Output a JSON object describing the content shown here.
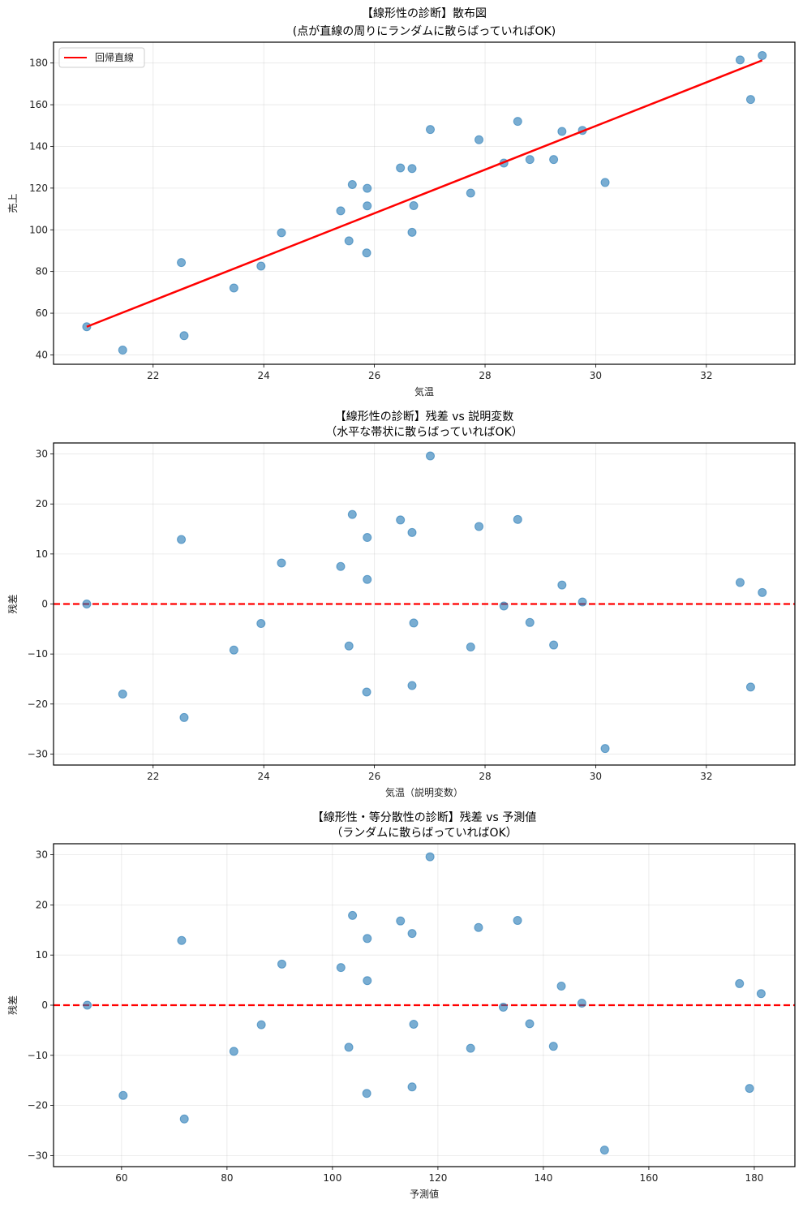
{
  "chart_data": [
    {
      "type": "scatter",
      "title": "【線形性の診断】散布図",
      "subtitle": "(点が直線の周りにランダムに散らばっていればOK)",
      "xlabel": "気温",
      "ylabel": "売上",
      "xlim": [
        20.2,
        33.6
      ],
      "ylim": [
        35.5,
        190
      ],
      "xticks": [
        22,
        24,
        26,
        28,
        30,
        32
      ],
      "yticks": [
        40,
        60,
        80,
        100,
        120,
        140,
        160,
        180
      ],
      "grid": true,
      "legend": {
        "position": "top-left",
        "entries": [
          "回帰直線"
        ]
      },
      "series": [
        {
          "name": "data",
          "kind": "scatter",
          "color": "#1f77b4",
          "x": [
            20.8,
            21.45,
            22.51,
            22.56,
            23.46,
            23.95,
            24.32,
            25.39,
            25.54,
            25.6,
            25.87,
            25.87,
            25.86,
            26.47,
            26.68,
            26.71,
            26.68,
            27.01,
            27.74,
            27.89,
            28.34,
            28.59,
            28.81,
            29.24,
            29.39,
            29.76,
            30.17,
            32.61,
            32.8,
            33.01
          ],
          "y": [
            53.5,
            42.3,
            84.3,
            49.2,
            72.1,
            82.6,
            98.6,
            109.1,
            94.7,
            121.7,
            119.9,
            111.5,
            88.9,
            129.7,
            129.4,
            111.6,
            98.8,
            148.1,
            117.6,
            143.2,
            132.0,
            152.0,
            133.7,
            133.7,
            147.2,
            147.7,
            122.7,
            181.5,
            162.5,
            183.6
          ]
        },
        {
          "name": "回帰直線",
          "kind": "line",
          "color": "#ff0000",
          "x": [
            20.8,
            33.01
          ],
          "y": [
            53.5,
            181.3
          ]
        }
      ]
    },
    {
      "type": "scatter",
      "title": "【線形性の診断】残差 vs 説明変数",
      "subtitle": "（水平な帯状に散らばっていればOK）",
      "xlabel": "気温（説明変数）",
      "ylabel": "残差",
      "xlim": [
        20.2,
        33.6
      ],
      "ylim": [
        -32.2,
        32.2
      ],
      "xticks": [
        22,
        24,
        26,
        28,
        30,
        32
      ],
      "yticks": [
        -30,
        -20,
        -10,
        0,
        10,
        20,
        30
      ],
      "ytick_labels": [
        "−30",
        "−20",
        "−10",
        "0",
        "10",
        "20",
        "30"
      ],
      "grid": true,
      "reference_line": {
        "y": 0,
        "style": "dashed",
        "color": "#ff0000"
      },
      "series": [
        {
          "name": "residuals",
          "kind": "scatter",
          "color": "#1f77b4",
          "x": [
            20.8,
            21.45,
            22.51,
            22.56,
            23.46,
            23.95,
            24.32,
            25.39,
            25.54,
            25.6,
            25.87,
            25.87,
            25.86,
            26.47,
            26.68,
            26.71,
            26.68,
            27.01,
            27.74,
            27.89,
            28.34,
            28.59,
            28.81,
            29.24,
            29.39,
            29.76,
            30.17,
            32.61,
            32.8,
            33.01
          ],
          "y": [
            0.0,
            -18.0,
            12.9,
            -22.7,
            -9.2,
            -3.9,
            8.2,
            7.5,
            -8.4,
            17.9,
            13.3,
            4.9,
            -17.6,
            16.8,
            14.3,
            -3.8,
            -16.3,
            29.6,
            -8.6,
            15.5,
            -0.4,
            16.9,
            -3.7,
            -8.2,
            3.8,
            0.4,
            -28.9,
            4.3,
            -16.6,
            2.3
          ]
        }
      ]
    },
    {
      "type": "scatter",
      "title": "【線形性・等分散性の診断】残差 vs 予測値",
      "subtitle": "（ランダムに散らばっていればOK）",
      "xlabel": "予測値",
      "ylabel": "残差",
      "xlim": [
        47.1,
        187.7
      ],
      "ylim": [
        -32.2,
        32.2
      ],
      "xticks": [
        60,
        80,
        100,
        120,
        140,
        160,
        180
      ],
      "yticks": [
        -30,
        -20,
        -10,
        0,
        10,
        20,
        30
      ],
      "ytick_labels": [
        "−30",
        "−20",
        "−10",
        "0",
        "10",
        "20",
        "30"
      ],
      "grid": true,
      "reference_line": {
        "y": 0,
        "style": "dashed",
        "color": "#ff0000"
      },
      "series": [
        {
          "name": "residuals",
          "kind": "scatter",
          "color": "#1f77b4",
          "x": [
            53.5,
            60.3,
            71.4,
            71.9,
            81.3,
            86.5,
            90.4,
            101.6,
            103.1,
            103.8,
            106.6,
            106.6,
            106.5,
            112.9,
            115.1,
            115.4,
            115.1,
            118.5,
            126.2,
            127.7,
            132.4,
            135.1,
            137.4,
            141.9,
            143.4,
            147.3,
            151.6,
            177.2,
            179.1,
            181.3
          ],
          "y": [
            0.0,
            -18.0,
            12.9,
            -22.7,
            -9.2,
            -3.9,
            8.2,
            7.5,
            -8.4,
            17.9,
            13.3,
            4.9,
            -17.6,
            16.8,
            14.3,
            -3.8,
            -16.3,
            29.6,
            -8.6,
            15.5,
            -0.4,
            16.9,
            -3.7,
            -8.2,
            3.8,
            0.4,
            -28.9,
            4.3,
            -16.6,
            2.3
          ]
        }
      ]
    }
  ]
}
